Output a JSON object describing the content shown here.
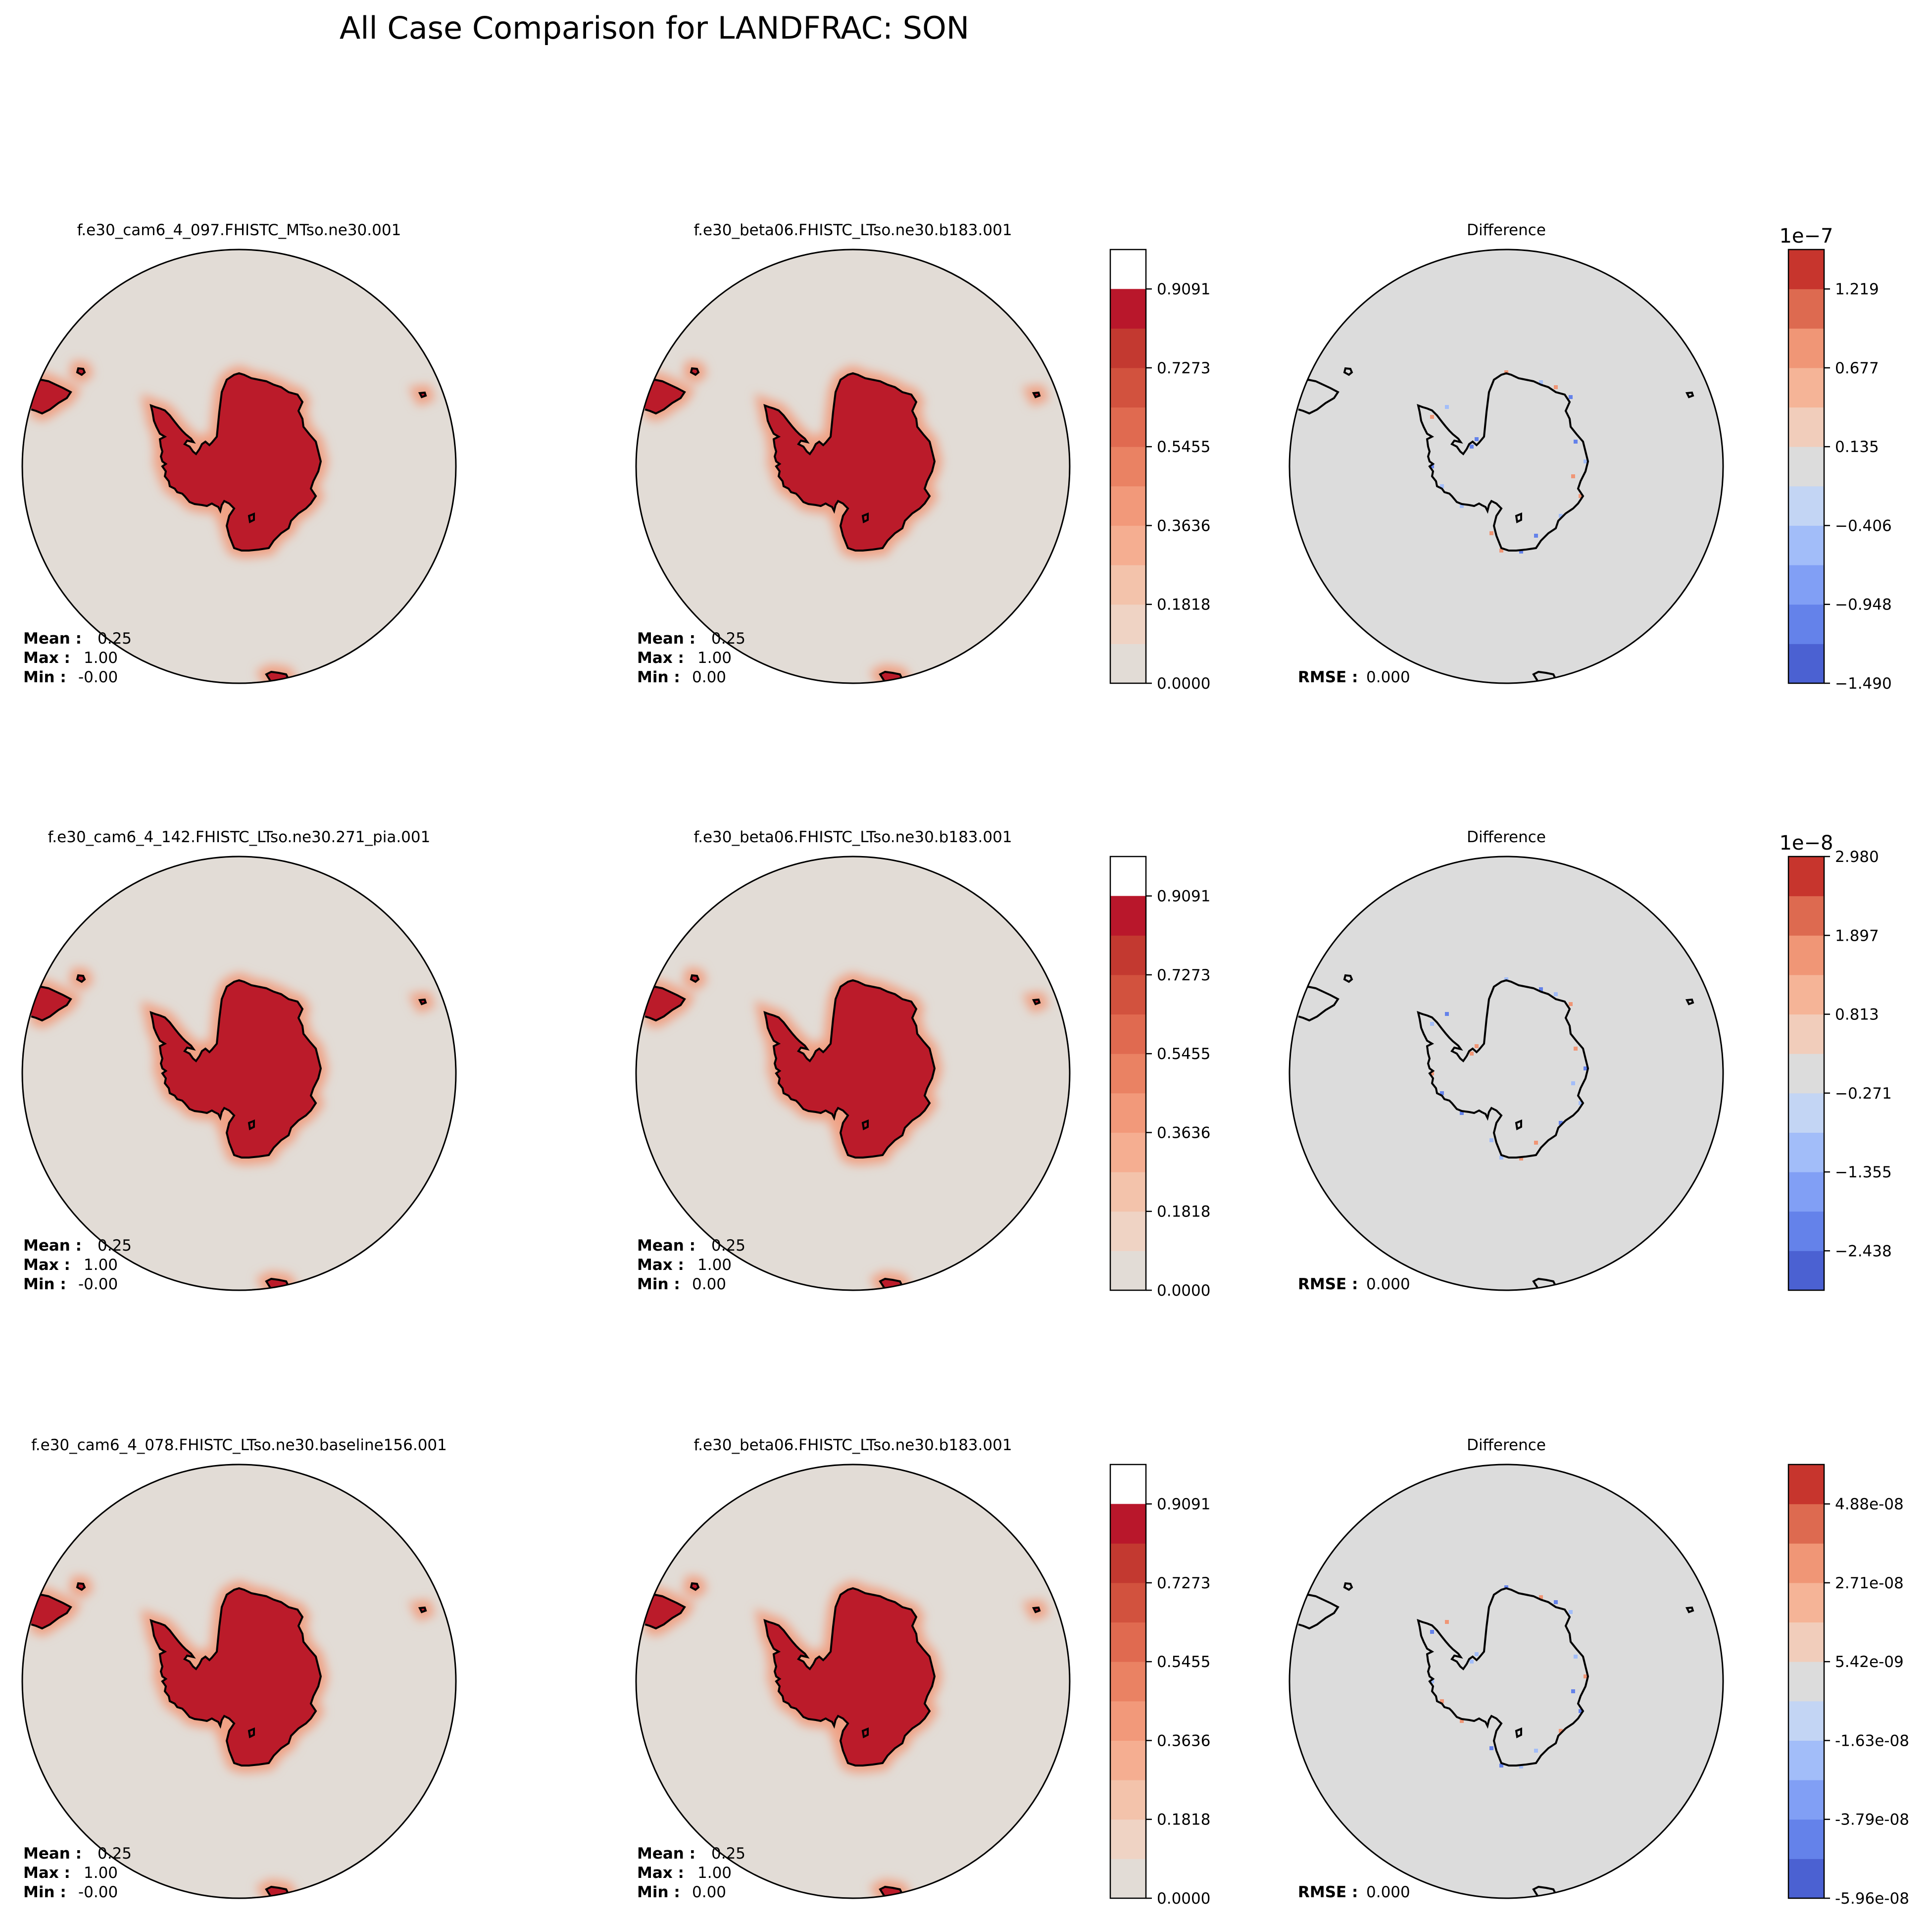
{
  "chart_data": {
    "type": "map",
    "title": "All Case Comparison for LANDFRAC: SON",
    "projection": "south-polar-stereographic",
    "colors": {
      "land_fill": "#bb1b2a",
      "background_fill": "#e2dcd6",
      "diff_fill": "#dcdcdc",
      "coast": "#000000",
      "reds": [
        "#e2dcd6",
        "#efd3c4",
        "#f3c3ab",
        "#f5ae91",
        "#f2997a",
        "#ea8263",
        "#e06a50",
        "#d2523e",
        "#c33930",
        "#b9172b"
      ],
      "diverging": [
        "#4b61d2",
        "#6482ea",
        "#819ff5",
        "#a2bdf9",
        "#c3d5f4",
        "#dcdcdc",
        "#f1cdbb",
        "#f5b497",
        "#f09676",
        "#dd6a50",
        "#c7352d"
      ]
    },
    "rows": [
      {
        "case_title": "f.e30_cam6_4_097.FHISTC_MTso.ne30.001",
        "baseline_title": "f.e30_beta06.FHISTC_LTso.ne30.b183.001",
        "diff_title": "Difference",
        "case_stats": {
          "mean_label": "Mean :",
          "mean": "0.25",
          "max_label": "Max :",
          "max": "1.00",
          "min_label": "Min :",
          "min": "-0.00"
        },
        "baseline_stats": {
          "mean_label": "Mean :",
          "mean": "0.25",
          "max_label": "Max :",
          "max": "1.00",
          "min_label": "Min :",
          "min": "0.00"
        },
        "rmse_label": "RMSE :",
        "rmse": "0.000",
        "colorbar_ticks": [
          "0.0000",
          "0.1818",
          "0.3636",
          "0.5455",
          "0.7273",
          "0.9091"
        ],
        "diff_offset": "1e−7",
        "diff_ticks": [
          "−1.490",
          "−0.948",
          "−0.406",
          "0.135",
          "0.677",
          "1.219"
        ],
        "diff_tick_positions": [
          0,
          2,
          4,
          6,
          8,
          10
        ]
      },
      {
        "case_title": "f.e30_cam6_4_142.FHISTC_LTso.ne30.271_pia.001",
        "baseline_title": "f.e30_beta06.FHISTC_LTso.ne30.b183.001",
        "diff_title": "Difference",
        "case_stats": {
          "mean_label": "Mean :",
          "mean": "0.25",
          "max_label": "Max :",
          "max": "1.00",
          "min_label": "Min :",
          "min": "-0.00"
        },
        "baseline_stats": {
          "mean_label": "Mean :",
          "mean": "0.25",
          "max_label": "Max :",
          "max": "1.00",
          "min_label": "Min :",
          "min": "0.00"
        },
        "rmse_label": "RMSE :",
        "rmse": "0.000",
        "colorbar_ticks": [
          "0.0000",
          "0.1818",
          "0.3636",
          "0.5455",
          "0.7273",
          "0.9091"
        ],
        "diff_offset": "1e−8",
        "diff_ticks": [
          "−2.438",
          "−1.355",
          "−0.271",
          "0.813",
          "1.897",
          "2.980"
        ],
        "diff_tick_positions": [
          1,
          3,
          5,
          7,
          9,
          11
        ]
      },
      {
        "case_title": "f.e30_cam6_4_078.FHISTC_LTso.ne30.baseline156.001",
        "baseline_title": "f.e30_beta06.FHISTC_LTso.ne30.b183.001",
        "diff_title": "Difference",
        "case_stats": {
          "mean_label": "Mean :",
          "mean": "0.25",
          "max_label": "Max :",
          "max": "1.00",
          "min_label": "Min :",
          "min": "-0.00"
        },
        "baseline_stats": {
          "mean_label": "Mean :",
          "mean": "0.25",
          "max_label": "Max :",
          "max": "1.00",
          "min_label": "Min :",
          "min": "0.00"
        },
        "rmse_label": "RMSE :",
        "rmse": "0.000",
        "colorbar_ticks": [
          "0.0000",
          "0.1818",
          "0.3636",
          "0.5455",
          "0.7273",
          "0.9091"
        ],
        "diff_offset": "",
        "diff_ticks": [
          "-5.96e-08",
          "-3.79e-08",
          "-1.63e-08",
          "5.42e-09",
          "2.71e-08",
          "4.88e-08"
        ],
        "diff_tick_positions": [
          0,
          2,
          4,
          6,
          8,
          10
        ]
      }
    ]
  }
}
